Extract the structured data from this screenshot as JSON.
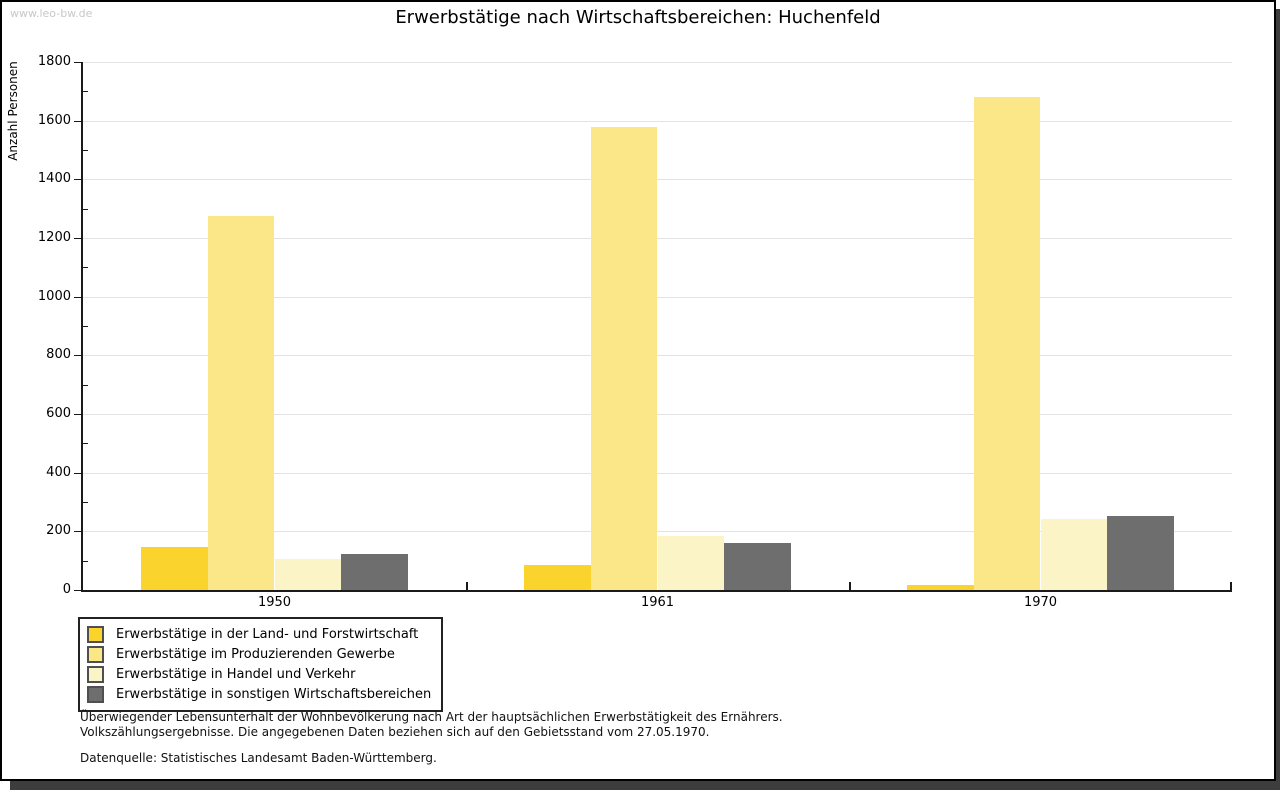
{
  "watermark": "www.leo-bw.de",
  "title": "Erwerbstätige nach Wirtschaftsbereichen: Huchenfeld",
  "chart_data": {
    "type": "bar",
    "title": "Erwerbstätige nach Wirtschaftsbereichen: Huchenfeld",
    "xlabel": "",
    "ylabel": "Anzahl Personen",
    "ylim": [
      0,
      1800
    ],
    "ytick_step": 200,
    "yminor_step": 100,
    "grid": true,
    "legend_position": "bottom-left",
    "categories": [
      "1950",
      "1961",
      "1970"
    ],
    "series": [
      {
        "name": "Erwerbstätige in der Land- und Forstwirtschaft",
        "color": "#fbd32d",
        "values": [
          145,
          85,
          18
        ]
      },
      {
        "name": "Erwerbstätige im Produzierenden Gewerbe",
        "color": "#fce788",
        "values": [
          1275,
          1580,
          1680
        ]
      },
      {
        "name": "Erwerbstätige in Handel und Verkehr",
        "color": "#fbf4c6",
        "values": [
          105,
          185,
          241
        ]
      },
      {
        "name": "Erwerbstätige in sonstigen Wirtschaftsbereichen",
        "color": "#6e6e6e",
        "values": [
          122,
          161,
          253
        ]
      }
    ]
  },
  "footnotes": {
    "line1": "Überwiegender Lebensunterhalt der Wohnbevölkerung nach Art der hauptsächlichen Erwerbstätigkeit des Ernährers.",
    "line2": "Volkszählungsergebnisse. Die angegebenen Daten beziehen sich auf den Gebietsstand vom 27.05.1970.",
    "source": "Datenquelle: Statistisches Landesamt Baden-Württemberg."
  },
  "colors": {
    "axis": "#1a1a1a",
    "gridline": "#e3e3e3",
    "watermark_text": "#c8c8c8",
    "shadow": "#3d3d3d"
  }
}
